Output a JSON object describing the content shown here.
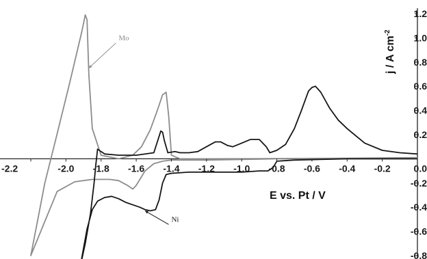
{
  "chart_data": {
    "type": "line",
    "xlabel": "E vs. Pt / V",
    "ylabel": "j / A cm",
    "ylabel_superscript": "-2",
    "xlim": [
      -2.2,
      0.0
    ],
    "ylim": [
      -0.8,
      1.2
    ],
    "x_ticks": [
      -2.2,
      -2.0,
      -1.8,
      -1.6,
      -1.4,
      -1.2,
      -1.0,
      -0.8,
      -0.6,
      -0.4,
      -0.2,
      0.0
    ],
    "x_tick_labels": [
      "-2.2",
      "-2.0",
      "-1.8",
      "-1.6",
      "-1.4",
      "-1.2",
      "-1.0",
      "-0.8",
      "-0.6",
      "-0.4",
      "-0.2",
      "0.0"
    ],
    "y_ticks": [
      1.2,
      1.0,
      0.8,
      0.6,
      0.4,
      0.2,
      0.0,
      -0.2,
      -0.4,
      -0.6,
      -0.8
    ],
    "y_tick_labels": [
      "1.2",
      "1.0",
      "0.8",
      "0.6",
      "0.4",
      "0.2",
      "0.0",
      "-0.2",
      "-0.4",
      "-0.6",
      "-0.8"
    ],
    "grid": false,
    "annotations": [
      {
        "text": "Mo",
        "series": "Mo",
        "x": -1.87,
        "y": 0.75
      },
      {
        "text": "Ni",
        "series": "Ni",
        "x": -1.55,
        "y": -0.43
      }
    ],
    "series": [
      {
        "name": "Mo",
        "color": "#8c8c8c",
        "points": [
          [
            0.0,
            0.01
          ],
          [
            -0.4,
            0.005
          ],
          [
            -0.8,
            0.002
          ],
          [
            -1.2,
            0.0
          ],
          [
            -1.35,
            0.0
          ],
          [
            -1.4,
            0.03
          ],
          [
            -1.415,
            0.35
          ],
          [
            -1.43,
            0.55
          ],
          [
            -1.45,
            0.53
          ],
          [
            -1.48,
            0.4
          ],
          [
            -1.52,
            0.24
          ],
          [
            -1.57,
            0.1
          ],
          [
            -1.62,
            0.03
          ],
          [
            -1.7,
            0.0
          ],
          [
            -1.8,
            0.03
          ],
          [
            -1.85,
            0.25
          ],
          [
            -1.87,
            0.7
          ],
          [
            -1.88,
            1.15
          ],
          [
            -1.89,
            1.19
          ],
          [
            -1.91,
            1.05
          ],
          [
            -1.98,
            0.62
          ],
          [
            -2.06,
            0.15
          ],
          [
            -2.12,
            -0.2
          ],
          [
            -2.16,
            -0.5
          ],
          [
            -2.2,
            -0.8
          ],
          [
            -2.05,
            -0.27
          ],
          [
            -1.95,
            -0.19
          ],
          [
            -1.85,
            -0.17
          ],
          [
            -1.8,
            -0.17
          ],
          [
            -1.75,
            -0.17
          ],
          [
            -1.7,
            -0.18
          ],
          [
            -1.65,
            -0.22
          ],
          [
            -1.62,
            -0.25
          ],
          [
            -1.6,
            -0.22
          ],
          [
            -1.55,
            -0.1
          ],
          [
            -1.5,
            -0.04
          ],
          [
            -1.45,
            -0.02
          ],
          [
            -1.4,
            -0.01
          ],
          [
            -1.2,
            -0.01
          ],
          [
            -1.0,
            -0.005
          ],
          [
            -0.8,
            0.0
          ],
          [
            -0.4,
            0.0
          ],
          [
            0.0,
            0.0
          ]
        ]
      },
      {
        "name": "Ni",
        "color": "#151515",
        "points": [
          [
            0.0,
            0.04
          ],
          [
            -0.1,
            0.05
          ],
          [
            -0.2,
            0.07
          ],
          [
            -0.3,
            0.13
          ],
          [
            -0.4,
            0.25
          ],
          [
            -0.45,
            0.32
          ],
          [
            -0.5,
            0.42
          ],
          [
            -0.55,
            0.55
          ],
          [
            -0.58,
            0.6
          ],
          [
            -0.6,
            0.59
          ],
          [
            -0.62,
            0.56
          ],
          [
            -0.66,
            0.4
          ],
          [
            -0.7,
            0.25
          ],
          [
            -0.75,
            0.12
          ],
          [
            -0.8,
            0.07
          ],
          [
            -0.84,
            0.05
          ],
          [
            -0.86,
            0.1
          ],
          [
            -0.9,
            0.16
          ],
          [
            -0.95,
            0.16
          ],
          [
            -1.0,
            0.13
          ],
          [
            -1.05,
            0.1
          ],
          [
            -1.08,
            0.11
          ],
          [
            -1.12,
            0.14
          ],
          [
            -1.15,
            0.14
          ],
          [
            -1.2,
            0.1
          ],
          [
            -1.25,
            0.06
          ],
          [
            -1.3,
            0.05
          ],
          [
            -1.35,
            0.05
          ],
          [
            -1.38,
            0.06
          ],
          [
            -1.42,
            0.05
          ],
          [
            -1.44,
            0.15
          ],
          [
            -1.45,
            0.22
          ],
          [
            -1.46,
            0.23
          ],
          [
            -1.48,
            0.14
          ],
          [
            -1.5,
            0.05
          ],
          [
            -1.6,
            0.03
          ],
          [
            -1.7,
            0.03
          ],
          [
            -1.78,
            0.04
          ],
          [
            -1.8,
            0.06
          ],
          [
            -1.82,
            0.08
          ],
          [
            -1.83,
            -0.05
          ],
          [
            -1.84,
            -0.2
          ],
          [
            -1.86,
            -0.45
          ],
          [
            -1.89,
            -0.7
          ],
          [
            -1.92,
            -0.9
          ],
          [
            -1.88,
            -0.58
          ],
          [
            -1.85,
            -0.42
          ],
          [
            -1.82,
            -0.35
          ],
          [
            -1.78,
            -0.32
          ],
          [
            -1.74,
            -0.31
          ],
          [
            -1.7,
            -0.33
          ],
          [
            -1.66,
            -0.36
          ],
          [
            -1.62,
            -0.38
          ],
          [
            -1.58,
            -0.4
          ],
          [
            -1.55,
            -0.42
          ],
          [
            -1.52,
            -0.43
          ],
          [
            -1.49,
            -0.42
          ],
          [
            -1.47,
            -0.34
          ],
          [
            -1.45,
            -0.2
          ],
          [
            -1.43,
            -0.13
          ],
          [
            -1.4,
            -0.12
          ],
          [
            -1.3,
            -0.11
          ],
          [
            -1.2,
            -0.11
          ],
          [
            -1.1,
            -0.11
          ],
          [
            -1.0,
            -0.11
          ],
          [
            -0.9,
            -0.1
          ],
          [
            -0.85,
            -0.1
          ],
          [
            -0.82,
            -0.07
          ],
          [
            -0.8,
            -0.02
          ],
          [
            -0.7,
            -0.01
          ],
          [
            -0.4,
            0.0
          ],
          [
            0.0,
            0.0
          ]
        ]
      }
    ]
  }
}
